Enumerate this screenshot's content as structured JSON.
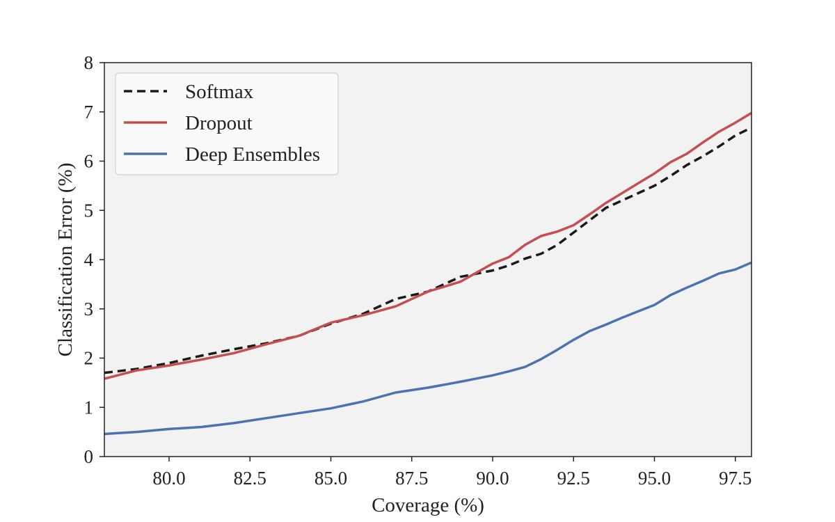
{
  "chart_data": {
    "type": "line",
    "title": "",
    "xlabel": "Coverage (%)",
    "ylabel": "Classification Error (%)",
    "xlim": [
      78.0,
      98.0
    ],
    "ylim": [
      0,
      8
    ],
    "xticks": [
      80.0,
      82.5,
      85.0,
      87.5,
      90.0,
      92.5,
      95.0,
      97.5
    ],
    "xtick_labels": [
      "80.0",
      "82.5",
      "85.0",
      "87.5",
      "90.0",
      "92.5",
      "95.0",
      "97.5"
    ],
    "yticks": [
      0,
      1,
      2,
      3,
      4,
      5,
      6,
      7,
      8
    ],
    "ytick_labels": [
      "0",
      "1",
      "2",
      "3",
      "4",
      "5",
      "6",
      "7",
      "8"
    ],
    "grid": false,
    "legend_position": "top-left",
    "background": "#f2f2f2",
    "series": [
      {
        "name": "Softmax",
        "color": "#1a1a1a",
        "style": "dashed",
        "x": [
          78,
          79,
          80,
          81,
          82,
          83,
          84,
          85,
          86,
          87,
          88,
          89,
          90,
          90.5,
          91,
          91.5,
          92,
          92.5,
          93,
          93.5,
          94,
          94.5,
          95,
          95.5,
          96,
          96.5,
          97,
          97.5,
          98
        ],
        "y": [
          1.7,
          1.78,
          1.9,
          2.05,
          2.18,
          2.3,
          2.45,
          2.7,
          2.9,
          3.2,
          3.35,
          3.65,
          3.78,
          3.88,
          4.02,
          4.12,
          4.3,
          4.55,
          4.8,
          5.05,
          5.2,
          5.35,
          5.5,
          5.7,
          5.92,
          6.1,
          6.3,
          6.52,
          6.68
        ]
      },
      {
        "name": "Dropout",
        "color": "#c44e52",
        "style": "solid",
        "x": [
          78,
          79,
          80,
          81,
          82,
          83,
          84,
          85,
          86,
          87,
          88,
          89,
          90,
          90.5,
          91,
          91.5,
          92,
          92.5,
          93,
          93.5,
          94,
          94.5,
          95,
          95.5,
          96,
          96.5,
          97,
          97.5,
          98
        ],
        "y": [
          1.58,
          1.75,
          1.85,
          1.97,
          2.1,
          2.28,
          2.45,
          2.72,
          2.87,
          3.05,
          3.35,
          3.55,
          3.92,
          4.05,
          4.3,
          4.48,
          4.57,
          4.7,
          4.92,
          5.15,
          5.35,
          5.55,
          5.75,
          5.98,
          6.15,
          6.38,
          6.6,
          6.78,
          6.98
        ]
      },
      {
        "name": "Deep Ensembles",
        "color": "#4c72b0",
        "style": "solid",
        "x": [
          78,
          79,
          80,
          81,
          82,
          83,
          84,
          85,
          86,
          87,
          88,
          89,
          90,
          90.5,
          91,
          91.5,
          92,
          92.5,
          93,
          93.5,
          94,
          94.5,
          95,
          95.5,
          96,
          96.5,
          97,
          97.5,
          98
        ],
        "y": [
          0.46,
          0.5,
          0.56,
          0.6,
          0.68,
          0.78,
          0.88,
          0.98,
          1.12,
          1.3,
          1.4,
          1.52,
          1.65,
          1.73,
          1.82,
          1.98,
          2.17,
          2.37,
          2.55,
          2.68,
          2.82,
          2.95,
          3.08,
          3.28,
          3.43,
          3.57,
          3.72,
          3.8,
          3.94
        ]
      }
    ]
  }
}
